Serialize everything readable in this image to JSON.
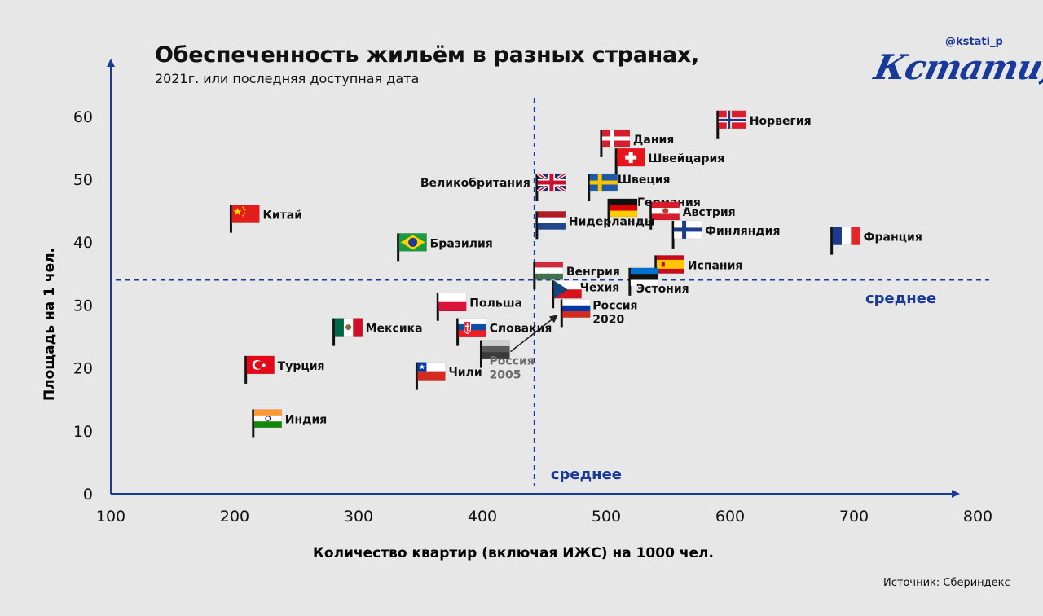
{
  "header": {
    "title": "Обеспеченность жильём в разных странах,",
    "subtitle": "2021г. или последняя доступная дата"
  },
  "brand": {
    "handle": "@kstati_p",
    "logo": "Кстати,"
  },
  "footer": {
    "source": "Источник: Сбериндекс"
  },
  "chart_data": {
    "type": "scatter",
    "xlabel": "Количество квартир (включая ИЖС) на 1000 чел.",
    "ylabel": "Площадь на 1 чел.",
    "xlim": [
      100,
      800
    ],
    "ylim": [
      0,
      65
    ],
    "x_ticks": [
      100,
      200,
      300,
      400,
      500,
      600,
      700,
      800
    ],
    "y_ticks": [
      0,
      10,
      20,
      30,
      40,
      50,
      60
    ],
    "averages": {
      "x": 442,
      "y": 34,
      "label": "среднее"
    },
    "grid": false,
    "points": [
      {
        "name": "Норвегия",
        "x": 590,
        "y": 56.5,
        "flag": "norway"
      },
      {
        "name": "Дания",
        "x": 496,
        "y": 53.5,
        "flag": "denmark"
      },
      {
        "name": "Швейцария",
        "x": 508,
        "y": 50.5,
        "flag": "switzerland"
      },
      {
        "name": "Великобритания",
        "x": 444,
        "y": 46.5,
        "flag": "uk"
      },
      {
        "name": "Швеция",
        "x": 486,
        "y": 46.5,
        "flag": "sweden"
      },
      {
        "name": "Германия",
        "x": 502,
        "y": 42.5,
        "flag": "germany"
      },
      {
        "name": "Австрия",
        "x": 536,
        "y": 42,
        "flag": "austria"
      },
      {
        "name": "Нидерланды",
        "x": 444,
        "y": 40.5,
        "flag": "netherlands"
      },
      {
        "name": "Финляндия",
        "x": 554,
        "y": 39,
        "flag": "finland"
      },
      {
        "name": "Франция",
        "x": 682,
        "y": 38,
        "flag": "france"
      },
      {
        "name": "Китай",
        "x": 197,
        "y": 41.5,
        "flag": "china"
      },
      {
        "name": "Бразилия",
        "x": 332,
        "y": 37,
        "flag": "brazil"
      },
      {
        "name": "Венгрия",
        "x": 442,
        "y": 32.5,
        "flag": "hungary"
      },
      {
        "name": "Испания",
        "x": 540,
        "y": 33.5,
        "flag": "spain"
      },
      {
        "name": "Эстония",
        "x": 519,
        "y": 31.5,
        "flag": "estonia"
      },
      {
        "name": "Чехия",
        "x": 457,
        "y": 29.5,
        "flag": "czech"
      },
      {
        "name": "Россия 2020",
        "x": 464,
        "y": 26.5,
        "flag": "russia"
      },
      {
        "name": "Польша",
        "x": 364,
        "y": 27.5,
        "flag": "poland"
      },
      {
        "name": "Словакия",
        "x": 380,
        "y": 23.5,
        "flag": "slovakia"
      },
      {
        "name": "Мексика",
        "x": 280,
        "y": 23.5,
        "flag": "mexico"
      },
      {
        "name": "Россия 2005",
        "x": 399,
        "y": 20,
        "flag": "russia-2005"
      },
      {
        "name": "Турция",
        "x": 209,
        "y": 17.5,
        "flag": "turkey"
      },
      {
        "name": "Чили",
        "x": 347,
        "y": 16.5,
        "flag": "chile"
      },
      {
        "name": "Индия",
        "x": 215,
        "y": 9,
        "flag": "india"
      }
    ],
    "arrow": {
      "from": "Россия 2005",
      "to": "Россия 2020"
    }
  }
}
